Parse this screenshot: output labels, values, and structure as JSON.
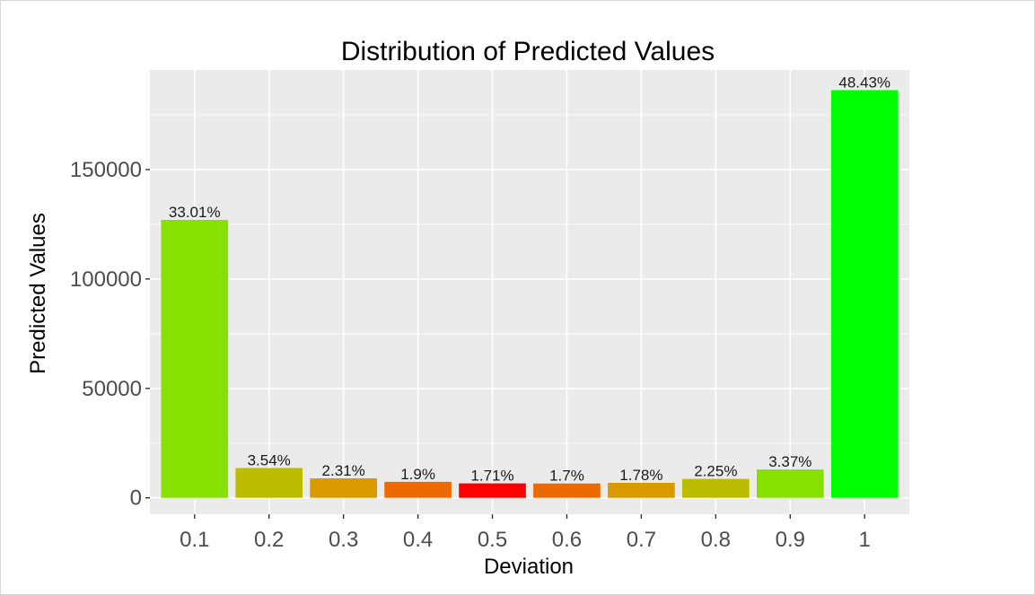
{
  "chart_data": {
    "type": "bar",
    "title": "Distribution of Predicted Values",
    "xlabel": "Deviation",
    "ylabel": "Predicted Values",
    "categories": [
      "0.1",
      "0.2",
      "0.3",
      "0.4",
      "0.5",
      "0.6",
      "0.7",
      "0.8",
      "0.9",
      "1"
    ],
    "values": [
      127000,
      13600,
      8900,
      7300,
      6600,
      6550,
      6850,
      8650,
      12950,
      186300
    ],
    "labels": [
      "33.01%",
      "3.54%",
      "2.31%",
      "1.9%",
      "1.71%",
      "1.7%",
      "1.78%",
      "2.25%",
      "3.37%",
      "48.43%"
    ],
    "colors": [
      "#88e000",
      "#bcbc00",
      "#d99a00",
      "#ee6a00",
      "#ff0000",
      "#ee6a00",
      "#d99a00",
      "#bcbc00",
      "#88e000",
      "#00ff00"
    ],
    "yticks": [
      "0",
      "50000",
      "100000",
      "150000"
    ],
    "ylim": [
      -7500,
      195500
    ],
    "grid": true,
    "legend": "none",
    "panel_background": "#ebebeb",
    "grid_color": "#ffffff"
  }
}
